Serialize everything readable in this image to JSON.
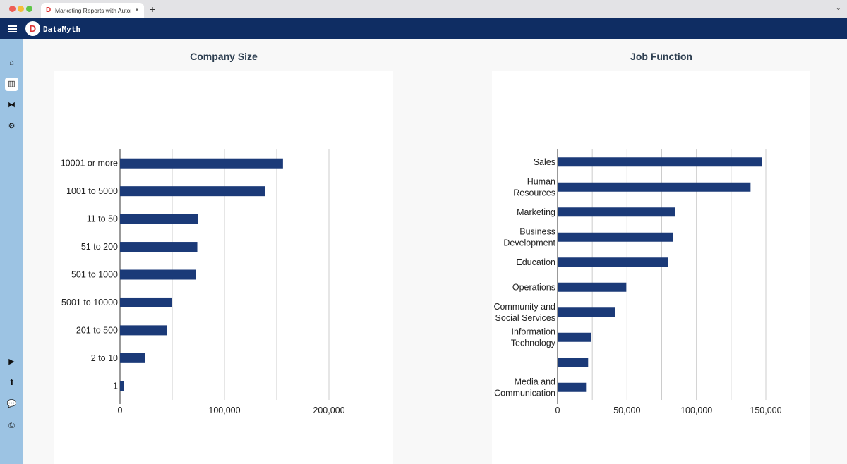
{
  "browser": {
    "tab_title": "Marketing Reports with Automa",
    "new_tab": "+",
    "close": "×"
  },
  "app": {
    "name": "DataMyth"
  },
  "sidebar": {
    "items": [
      {
        "icon": "home-icon",
        "active": false
      },
      {
        "icon": "chart-icon",
        "active": true
      },
      {
        "icon": "connections-icon",
        "active": false
      },
      {
        "icon": "settings-icon",
        "active": false
      },
      {
        "icon": "video-icon",
        "active": false
      },
      {
        "icon": "upload-icon",
        "active": false
      },
      {
        "icon": "chat-icon",
        "active": false
      },
      {
        "icon": "printer-icon",
        "active": false
      }
    ]
  },
  "colors": {
    "bar": "#1b3a78",
    "grid": "#cccccc",
    "header": "#0f2d63",
    "sidebar": "#9cc3e3"
  },
  "chart_data": [
    {
      "type": "bar",
      "orientation": "horizontal",
      "title": "Company Size",
      "categories": [
        [
          "10001 or more"
        ],
        [
          "1001 to 5000"
        ],
        [
          "11 to 50"
        ],
        [
          "51 to 200"
        ],
        [
          "501 to 1000"
        ],
        [
          "5001 to 10000"
        ],
        [
          "201 to 500"
        ],
        [
          "2 to 10"
        ],
        [
          "1"
        ]
      ],
      "values": [
        156000,
        139000,
        75000,
        74000,
        72500,
        49500,
        45000,
        24000,
        4000
      ],
      "xlim": [
        0,
        250000
      ],
      "ticks": [
        0,
        100000,
        200000
      ],
      "tick_labels": [
        "0",
        "100,000",
        "200,000"
      ],
      "gridlines": [
        50000,
        100000,
        150000,
        200000
      ],
      "grid": true
    },
    {
      "type": "bar",
      "orientation": "horizontal",
      "title": "Job Function",
      "categories": [
        [
          "Sales"
        ],
        [
          "Human",
          "Resources"
        ],
        [
          "Marketing"
        ],
        [
          "Business",
          "Development"
        ],
        [
          "Education"
        ],
        [
          "Operations"
        ],
        [
          "Community and",
          "Social Services"
        ],
        [
          "Information",
          "Technology"
        ],
        [
          ""
        ],
        [
          "Media and",
          "Communication"
        ]
      ],
      "values": [
        147000,
        139000,
        84500,
        83000,
        79500,
        49500,
        41500,
        24000,
        22000,
        20500
      ],
      "xlim": [
        0,
        165000
      ],
      "ticks": [
        0,
        50000,
        100000,
        150000
      ],
      "tick_labels": [
        "0",
        "50,000",
        "100,000",
        "150,000"
      ],
      "gridlines": [
        25000,
        50000,
        75000,
        100000,
        125000,
        150000
      ],
      "grid": true
    }
  ]
}
